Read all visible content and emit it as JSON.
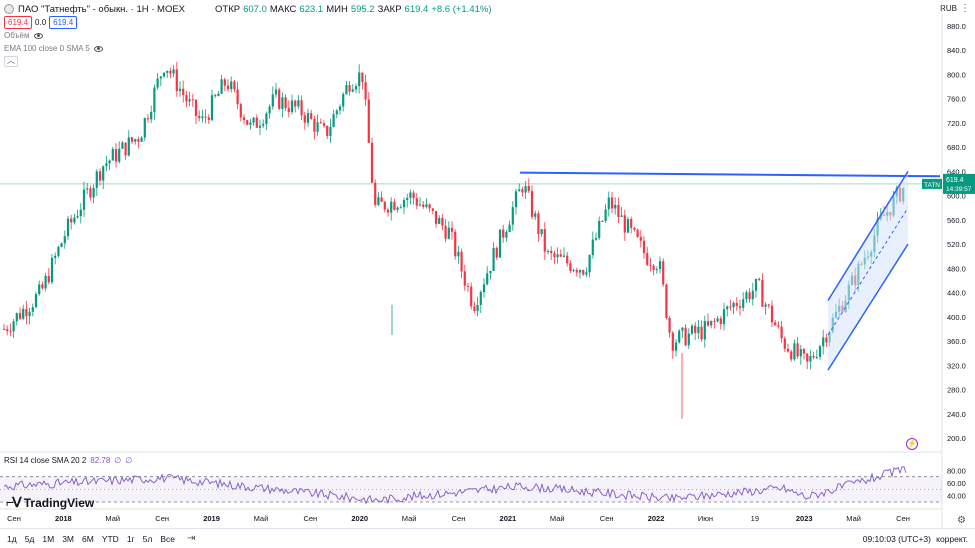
{
  "header": {
    "title": "ПАО \"Татнефть\" - обыкн. · 1Н · MOEX",
    "open_label": "ОТКР",
    "open": "607.0",
    "high_label": "МАКС",
    "high": "623.1",
    "low_label": "МИН",
    "low": "595.2",
    "close_label": "ЗАКР",
    "close": "619.4",
    "change": "+8.6 (+1.41%)"
  },
  "price_boxes": {
    "sell": "619.4",
    "spread": "0.0",
    "buy": "619.4"
  },
  "indicators": {
    "volume": "Объём",
    "ema": "EMA 100 close 0 SMA 5"
  },
  "currency": "RUB",
  "price_axis": {
    "ticks": [
      "880.0",
      "840.0",
      "800.0",
      "760.0",
      "720.0",
      "680.0",
      "640.0",
      "600.0",
      "560.0",
      "520.0",
      "480.0",
      "440.0",
      "400.0",
      "360.0",
      "320.0",
      "280.0",
      "240.0",
      "200.0"
    ],
    "last_price_symbol": "TATN",
    "last_price": "619.4",
    "countdown": "14:39:57"
  },
  "rsi": {
    "label": "RSI 14 close SMA 20 2",
    "value": "82.78",
    "na1": "∅",
    "na2": "∅",
    "ticks": [
      "80.00",
      "60.00",
      "40.00"
    ],
    "bands": [
      70,
      30
    ],
    "color": "#7e57c2"
  },
  "time_axis": [
    "Сен",
    "2018",
    "Май",
    "Сен",
    "2019",
    "Май",
    "Сен",
    "2020",
    "Май",
    "Сен",
    "2021",
    "Май",
    "Сен",
    "2022",
    "Июн",
    "19",
    "2023",
    "Май",
    "Сен"
  ],
  "logo": "TradingView",
  "range_buttons": [
    "1д",
    "5д",
    "1М",
    "3М",
    "6М",
    "YTD",
    "1г",
    "5л",
    "Все"
  ],
  "clock": "09:10:03 (UTC+3)",
  "correction": "коррект.",
  "colors": {
    "up": "#089981",
    "down": "#f23645",
    "trend_line": "#2962ff",
    "channel_fill": "#d6e2fb"
  },
  "chart_data": {
    "type": "candlestick",
    "symbol": "TATN",
    "period": "2017-09 to 2023-10",
    "ylim": [
      200,
      900
    ],
    "resistance_level": 635,
    "series": [
      {
        "name": "close_points",
        "x": [
          "2017-09",
          "2017-12",
          "2018-02",
          "2018-05",
          "2018-08",
          "2018-10",
          "2018-12",
          "2019-01",
          "2019-03",
          "2019-05",
          "2019-07",
          "2019-09",
          "2019-11",
          "2020-01",
          "2020-02",
          "2020-03",
          "2020-06",
          "2020-09",
          "2020-11",
          "2021-01",
          "2021-03",
          "2021-05",
          "2021-08",
          "2021-10",
          "2022-01",
          "2022-02",
          "2022-03",
          "2022-06",
          "2022-08",
          "2022-10",
          "2022-12",
          "2023-02",
          "2023-04",
          "2023-06",
          "2023-08",
          "2023-10"
        ],
        "y": [
          380,
          440,
          540,
          650,
          700,
          820,
          750,
          720,
          790,
          710,
          760,
          740,
          700,
          790,
          800,
          580,
          600,
          540,
          420,
          520,
          620,
          500,
          480,
          590,
          500,
          490,
          360,
          380,
          420,
          450,
          360,
          320,
          390,
          470,
          560,
          619.4
        ]
      }
    ],
    "rsi_series": {
      "x": [
        "2017-09",
        "2018-10",
        "2019-06",
        "2020-03",
        "2021-03",
        "2022-03",
        "2022-12",
        "2023-02",
        "2023-10"
      ],
      "y": [
        55,
        68,
        52,
        33,
        55,
        35,
        52,
        38,
        82.78
      ]
    }
  }
}
